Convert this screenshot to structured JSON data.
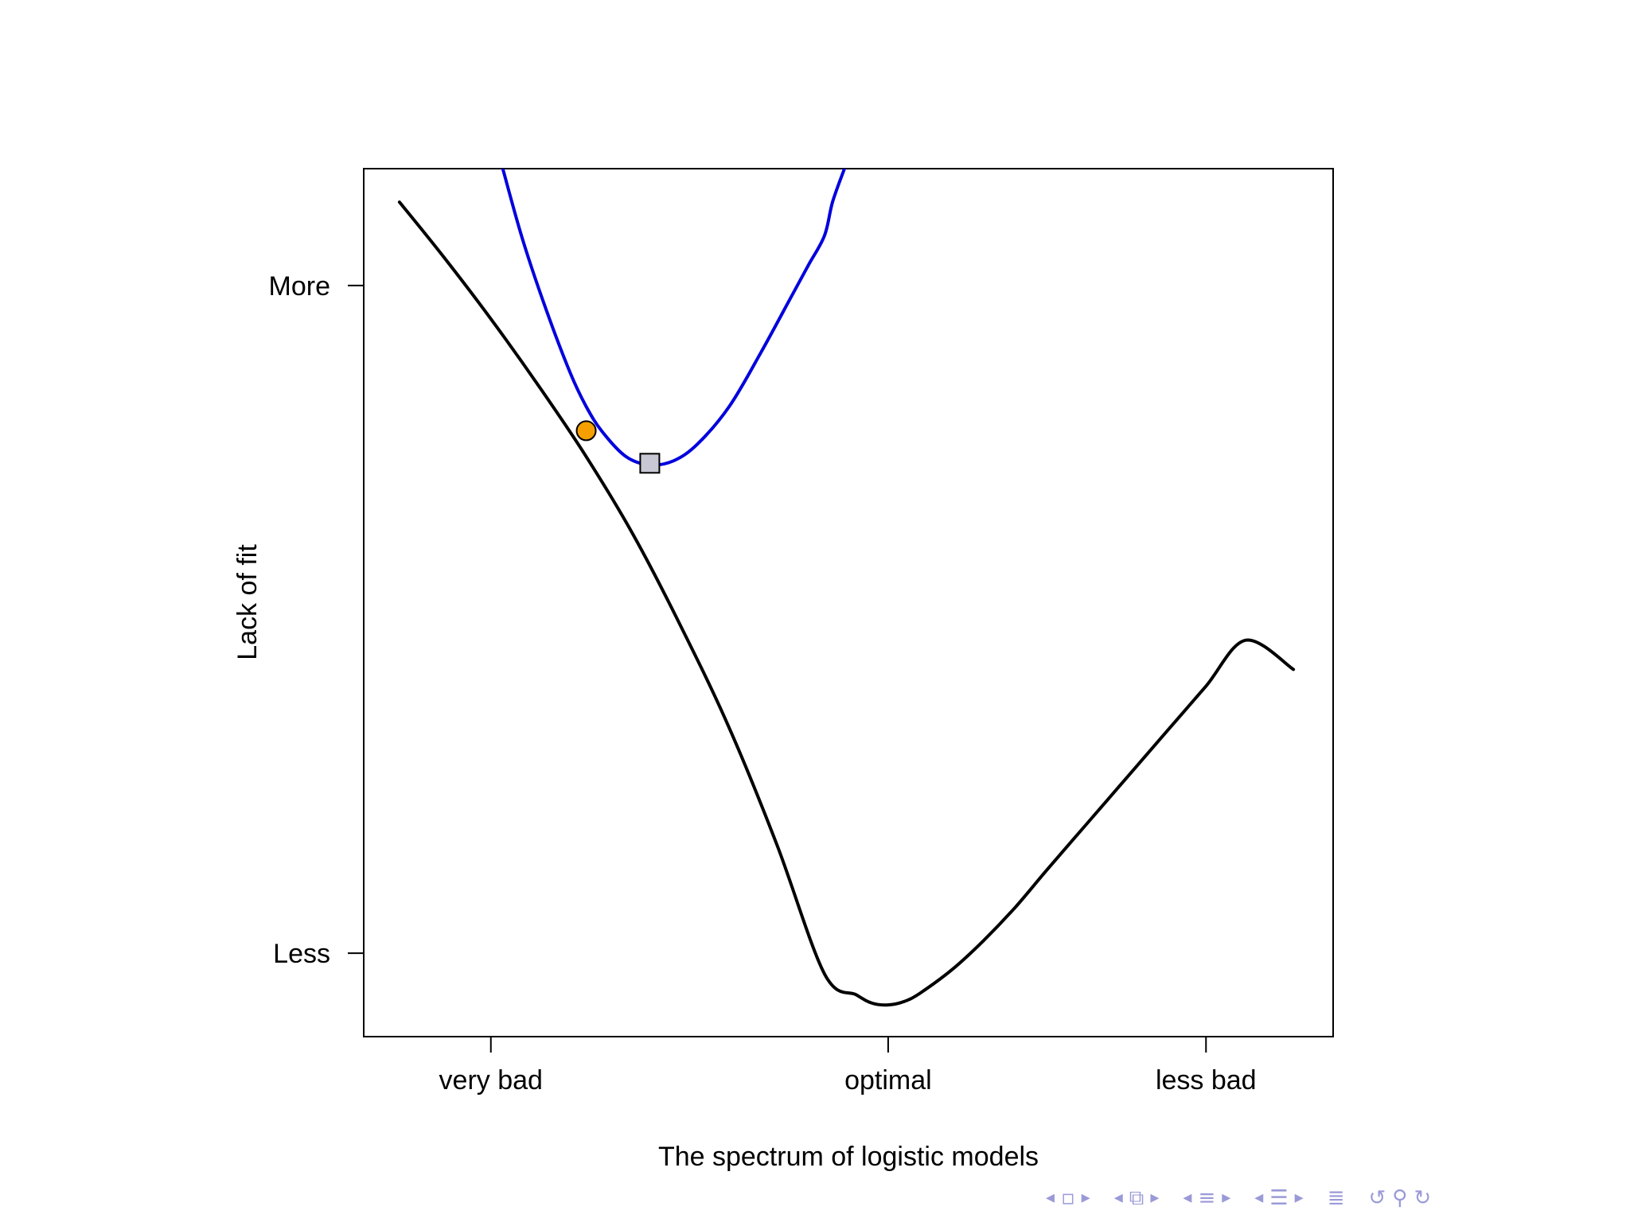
{
  "chart_data": {
    "type": "line",
    "title": "",
    "xlabel": "The spectrum of logistic models",
    "ylabel": "Lack of fit",
    "x_ticks": [
      {
        "value": 1.0,
        "label": "very bad"
      },
      {
        "value": 6.0,
        "label": "optimal"
      },
      {
        "value": 10.0,
        "label": "less bad"
      }
    ],
    "y_ticks": [
      {
        "value": 9.0,
        "label": "More"
      },
      {
        "value": 1.0,
        "label": "Less"
      }
    ],
    "xlim": [
      -0.6,
      11.6
    ],
    "ylim": [
      0.0,
      10.4
    ],
    "grid": false,
    "series": [
      {
        "color": "#000000",
        "x": [
          -0.15,
          0.4,
          1.0,
          1.6,
          2.2,
          2.8,
          3.4,
          4.0,
          4.6,
          5.2,
          5.6,
          5.8,
          6.0,
          6.2,
          6.4,
          6.8,
          7.2,
          7.6,
          8.0,
          8.5,
          9.0,
          9.5,
          10.0,
          10.5,
          11.1
        ],
        "y": [
          10.0,
          9.35,
          8.6,
          7.8,
          6.95,
          6.0,
          4.9,
          3.7,
          2.3,
          0.75,
          0.5,
          0.4,
          0.38,
          0.42,
          0.52,
          0.8,
          1.15,
          1.55,
          2.0,
          2.55,
          3.1,
          3.65,
          4.2,
          4.75,
          4.4
        ]
      },
      {
        "color": "#0000dd",
        "x": [
          1.15,
          1.4,
          1.7,
          2.0,
          2.2,
          2.4,
          2.7,
          3.0,
          3.3,
          3.6,
          4.0,
          4.4,
          4.8,
          5.0,
          5.2,
          5.3,
          5.45
        ],
        "y": [
          10.4,
          9.55,
          8.7,
          7.95,
          7.55,
          7.25,
          6.95,
          6.85,
          6.9,
          7.1,
          7.55,
          8.2,
          8.9,
          9.25,
          9.6,
          10.0,
          10.4
        ]
      }
    ],
    "markers": [
      {
        "shape": "circle",
        "x": 2.2,
        "y": 7.26,
        "color": "#f5a000"
      },
      {
        "shape": "square",
        "x": 3.0,
        "y": 6.87,
        "color": "#c8c8d4"
      }
    ]
  },
  "navigation": {
    "icons": [
      "nav-prev-icon",
      "frame-icon",
      "nav-next-icon",
      "nav-prev-icon",
      "subsection-icon",
      "nav-next-icon",
      "nav-prev-icon",
      "section-icon",
      "nav-next-icon",
      "nav-prev-icon",
      "document-icon",
      "nav-next-icon",
      "toc-icon",
      "back-icon",
      "search-icon",
      "forward-icon"
    ]
  }
}
